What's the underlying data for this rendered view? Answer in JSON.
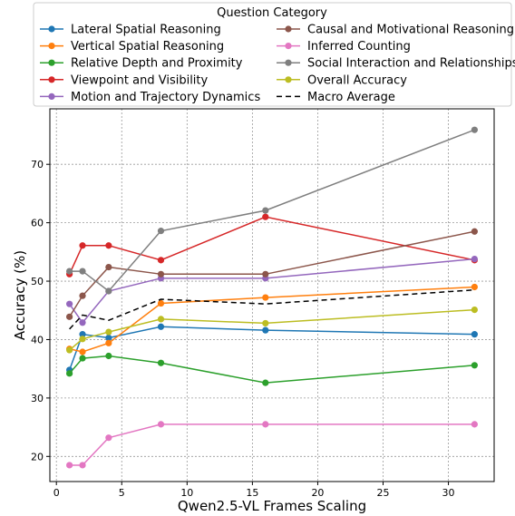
{
  "chart_data": {
    "type": "line",
    "xlabel": "Qwen2.5-VL Frames Scaling",
    "ylabel": "Accuracy (%)",
    "xlim": [
      -0.5,
      33.5
    ],
    "ylim": [
      15.7,
      79.5
    ],
    "xticks": [
      0,
      5,
      10,
      15,
      20,
      25,
      30
    ],
    "yticks": [
      20,
      30,
      40,
      50,
      60,
      70
    ],
    "grid": true,
    "legend": {
      "title": "Question Category",
      "placement": "top",
      "columns": 2
    },
    "x": [
      1,
      2,
      4,
      8,
      16,
      32
    ],
    "series": [
      {
        "name": "Lateral Spatial Reasoning",
        "color": "#1f77b4",
        "style": "solid",
        "marker": true,
        "values": [
          34.8,
          40.9,
          40.3,
          42.2,
          41.6,
          40.9
        ]
      },
      {
        "name": "Vertical Spatial Reasoning",
        "color": "#ff7f0e",
        "style": "solid",
        "marker": true,
        "values": [
          38.4,
          37.9,
          39.4,
          46.2,
          47.2,
          49.0
        ]
      },
      {
        "name": "Relative Depth and Proximity",
        "color": "#2ca02c",
        "style": "solid",
        "marker": true,
        "values": [
          34.2,
          36.8,
          37.2,
          36.0,
          32.6,
          35.6
        ]
      },
      {
        "name": "Viewpoint and Visibility",
        "color": "#d62728",
        "style": "solid",
        "marker": true,
        "values": [
          51.2,
          56.1,
          56.1,
          53.6,
          61.0,
          53.6
        ]
      },
      {
        "name": "Motion and Trajectory Dynamics",
        "color": "#9467bd",
        "style": "solid",
        "marker": true,
        "values": [
          46.1,
          42.9,
          48.3,
          50.5,
          50.5,
          53.8
        ]
      },
      {
        "name": "Causal and Motivational Reasoning",
        "color": "#8c564b",
        "style": "solid",
        "marker": true,
        "values": [
          43.9,
          47.5,
          52.4,
          51.2,
          51.2,
          58.5
        ]
      },
      {
        "name": "Inferred Counting",
        "color": "#e377c2",
        "style": "solid",
        "marker": true,
        "values": [
          18.5,
          18.5,
          23.2,
          25.5,
          25.5,
          25.5
        ]
      },
      {
        "name": "Social Interaction and Relationships",
        "color": "#7f7f7f",
        "style": "solid",
        "marker": true,
        "values": [
          51.7,
          51.7,
          48.3,
          58.6,
          62.1,
          75.9
        ]
      },
      {
        "name": "Overall Accuracy",
        "color": "#bcbd22",
        "style": "solid",
        "marker": true,
        "values": [
          38.2,
          40.1,
          41.3,
          43.5,
          42.8,
          45.1
        ]
      },
      {
        "name": "Macro Average",
        "color": "#000000",
        "style": "dashed",
        "marker": false,
        "values": [
          41.8,
          44.2,
          43.3,
          46.9,
          46.1,
          48.5
        ]
      }
    ]
  }
}
